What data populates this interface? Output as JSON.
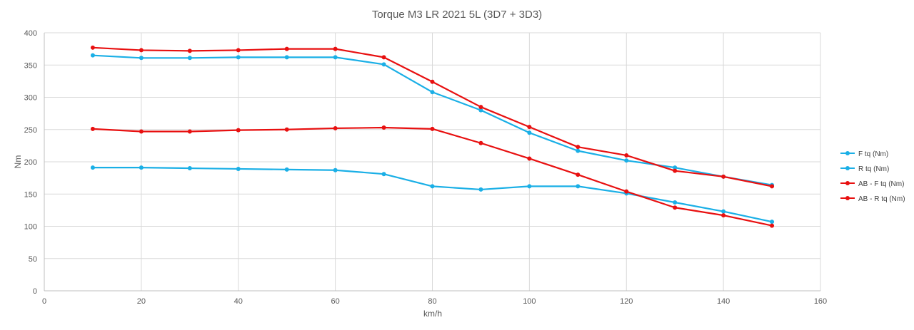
{
  "chart_data": {
    "type": "line",
    "title": "Torque  M3 LR 2021 5L (3D7 + 3D3)",
    "xlabel": "km/h",
    "ylabel": "Nm",
    "xlim": [
      0,
      160
    ],
    "ylim": [
      0,
      400
    ],
    "x_ticks": [
      0,
      20,
      40,
      60,
      80,
      100,
      120,
      140,
      160
    ],
    "y_ticks": [
      0,
      50,
      100,
      150,
      200,
      250,
      300,
      350,
      400
    ],
    "grid": true,
    "legend_position": "right",
    "x": [
      10,
      20,
      30,
      40,
      50,
      60,
      70,
      80,
      90,
      100,
      110,
      120,
      130,
      140,
      150
    ],
    "series": [
      {
        "name": "F tq (Nm)",
        "color": "#1AAFE6",
        "values": [
          365,
          361,
          361,
          362,
          362,
          362,
          351,
          308,
          280,
          245,
          217,
          202,
          191,
          177,
          164
        ]
      },
      {
        "name": "R tq (Nm)",
        "color": "#1AAFE6",
        "values": [
          191,
          191,
          190,
          189,
          188,
          187,
          181,
          162,
          157,
          162,
          162,
          151,
          137,
          123,
          107
        ]
      },
      {
        "name": "AB - F tq (Nm)",
        "color": "#E81010",
        "values": [
          377,
          373,
          372,
          373,
          375,
          375,
          362,
          324,
          285,
          254,
          223,
          210,
          186,
          177,
          162
        ]
      },
      {
        "name": "AB - R tq (Nm)",
        "color": "#E81010",
        "values": [
          251,
          247,
          247,
          249,
          250,
          252,
          253,
          251,
          229,
          205,
          180,
          154,
          129,
          117,
          101
        ]
      }
    ]
  }
}
